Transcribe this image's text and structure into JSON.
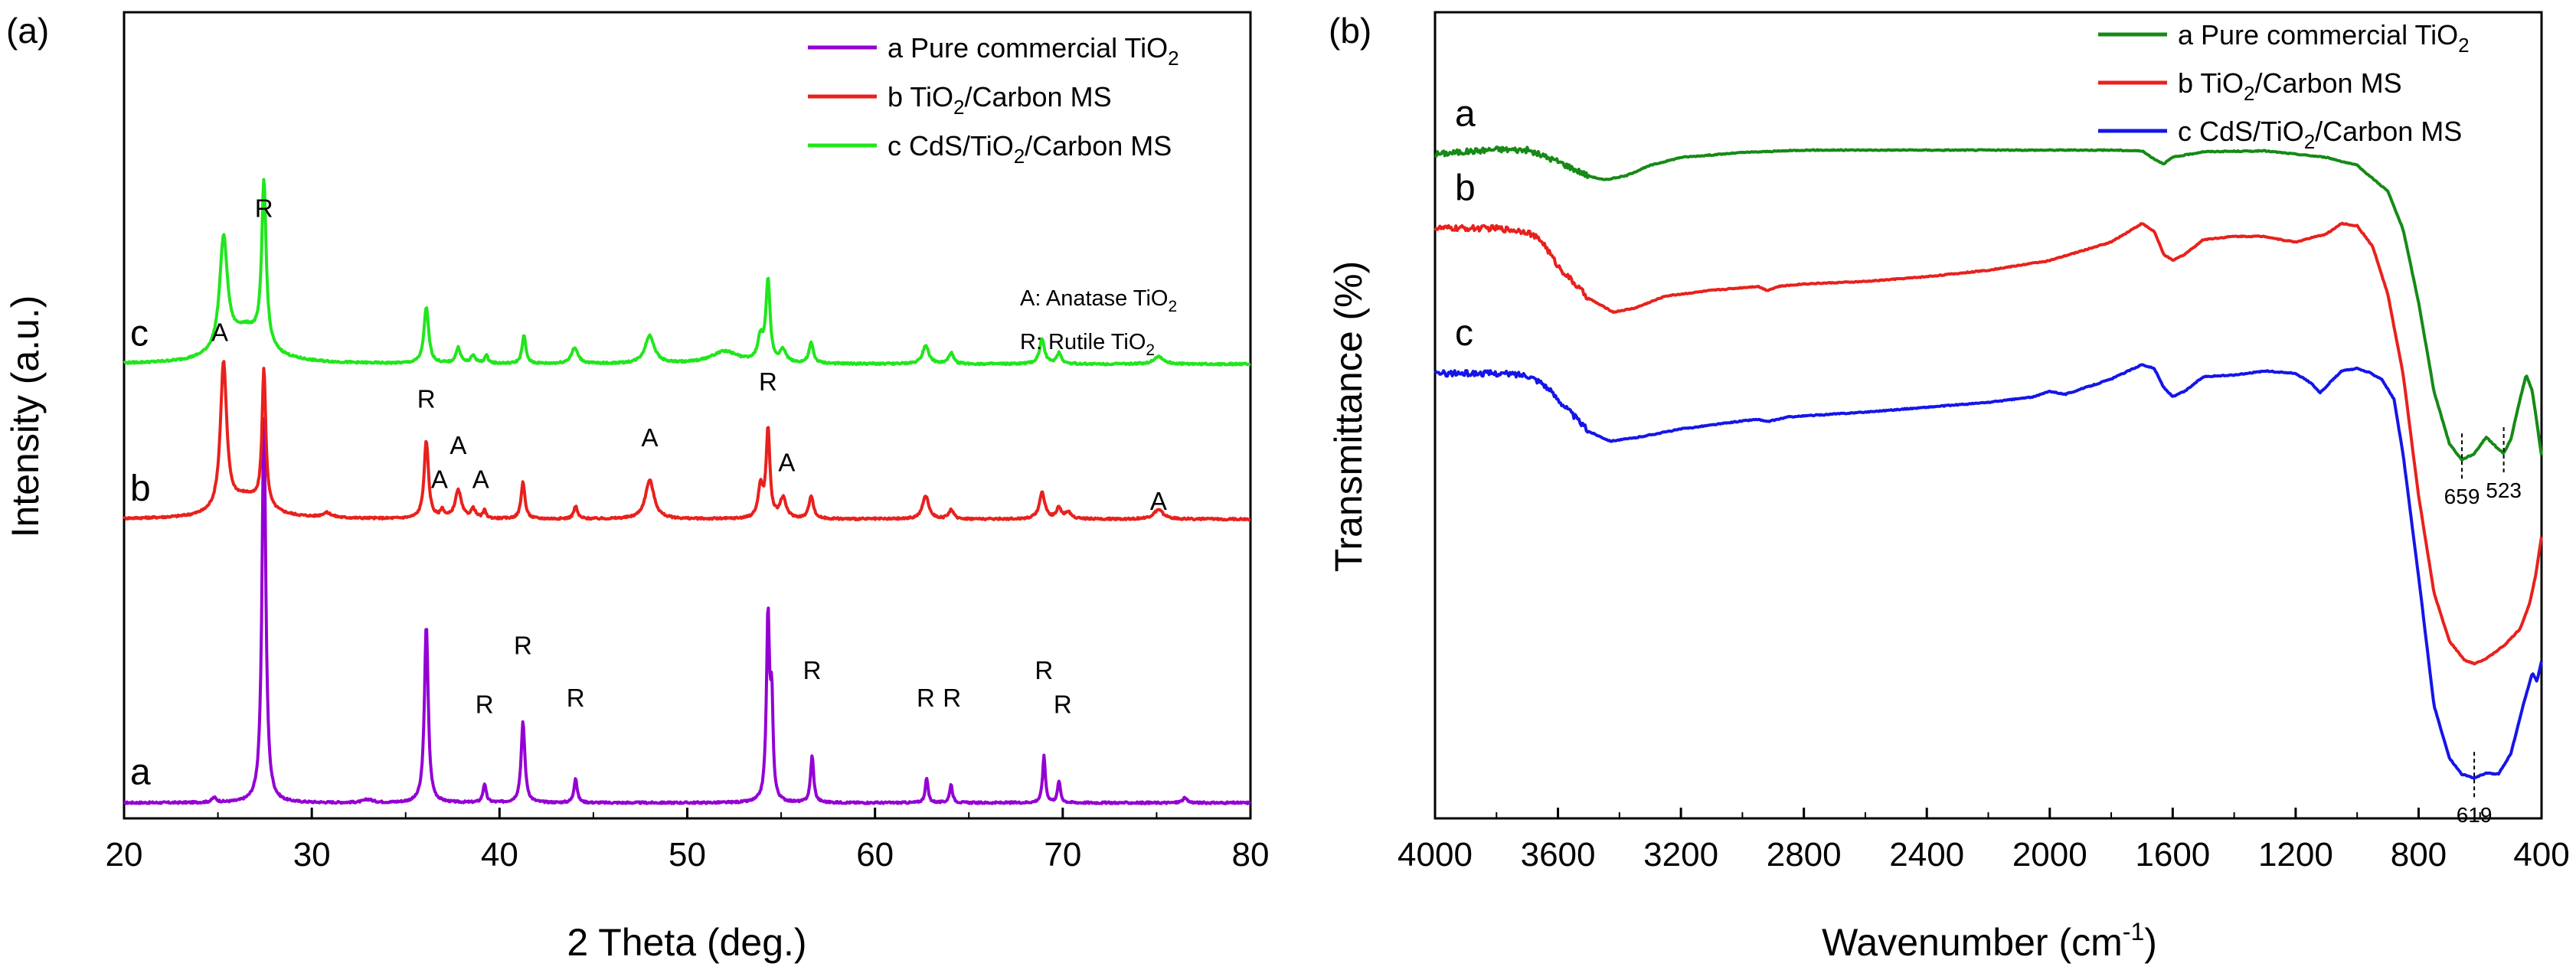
{
  "chart_data": [
    {
      "type": "line",
      "panel_label": "(a)",
      "xlabel": "2 Theta (deg.)",
      "ylabel": "Intensity (a.u.)",
      "xlim": [
        20,
        80
      ],
      "xticks": [
        20,
        30,
        40,
        50,
        60,
        70,
        80
      ],
      "ylim": [
        0,
        5.2
      ],
      "y_ticks_shown": false,
      "legend_position": "top-right",
      "series": [
        {
          "id": "a",
          "curve_label": "a",
          "legend_prefix": "a",
          "legend_main": "Pure commercial TiO",
          "legend_sub": "2",
          "legend_tail": "",
          "color": "#9400d3",
          "offset": 0.05,
          "baseline": 0.05,
          "peaks": [
            [
              27.45,
              2.5,
              0.12
            ],
            [
              36.1,
              1.15,
              0.12
            ],
            [
              39.2,
              0.12,
              0.1
            ],
            [
              41.25,
              0.52,
              0.12
            ],
            [
              44.05,
              0.16,
              0.1
            ],
            [
              54.3,
              1.2,
              0.1
            ],
            [
              54.5,
              0.6,
              0.08
            ],
            [
              56.65,
              0.3,
              0.1
            ],
            [
              62.75,
              0.16,
              0.09
            ],
            [
              64.05,
              0.12,
              0.09
            ],
            [
              69.0,
              0.3,
              0.09
            ],
            [
              69.8,
              0.14,
              0.09
            ],
            [
              24.8,
              0.03,
              0.15
            ],
            [
              33.0,
              0.02,
              0.3
            ],
            [
              76.5,
              0.03,
              0.15
            ]
          ]
        },
        {
          "id": "b",
          "curve_label": "b",
          "legend_prefix": "b",
          "legend_main": "TiO",
          "legend_sub": "2",
          "legend_tail": "/Carbon MS",
          "color": "#e8211d",
          "offset": 1.9,
          "baseline": 0.03,
          "peaks": [
            [
              25.3,
              0.95,
              0.2
            ],
            [
              27.45,
              0.88,
              0.12
            ],
            [
              36.1,
              0.5,
              0.14
            ],
            [
              36.95,
              0.05,
              0.12
            ],
            [
              37.8,
              0.18,
              0.2
            ],
            [
              38.6,
              0.06,
              0.15
            ],
            [
              39.2,
              0.05,
              0.1
            ],
            [
              41.25,
              0.24,
              0.12
            ],
            [
              44.05,
              0.08,
              0.12
            ],
            [
              48.0,
              0.25,
              0.28
            ],
            [
              53.9,
              0.2,
              0.15
            ],
            [
              54.3,
              0.57,
              0.12
            ],
            [
              55.1,
              0.13,
              0.2
            ],
            [
              56.6,
              0.15,
              0.14
            ],
            [
              62.7,
              0.15,
              0.2
            ],
            [
              64.05,
              0.06,
              0.15
            ],
            [
              68.9,
              0.17,
              0.18
            ],
            [
              69.8,
              0.07,
              0.15
            ],
            [
              70.3,
              0.04,
              0.2
            ],
            [
              75.1,
              0.06,
              0.3
            ],
            [
              30.8,
              0.03,
              0.3
            ],
            [
              26.5,
              0.14,
              1.2
            ]
          ]
        },
        {
          "id": "c",
          "curve_label": "c",
          "legend_prefix": "c",
          "legend_main": "CdS/TiO",
          "legend_sub": "2",
          "legend_tail": "/Carbon MS",
          "color": "#21e61d",
          "offset": 2.9,
          "baseline": 0.03,
          "peaks": [
            [
              25.3,
              0.72,
              0.25
            ],
            [
              27.45,
              1.05,
              0.14
            ],
            [
              26.5,
              0.22,
              1.2
            ],
            [
              36.1,
              0.36,
              0.15
            ],
            [
              37.8,
              0.1,
              0.15
            ],
            [
              38.6,
              0.05,
              0.15
            ],
            [
              39.3,
              0.05,
              0.12
            ],
            [
              41.3,
              0.18,
              0.12
            ],
            [
              44.0,
              0.1,
              0.22
            ],
            [
              48.0,
              0.18,
              0.3
            ],
            [
              52.0,
              0.08,
              0.9
            ],
            [
              54.3,
              0.52,
              0.13
            ],
            [
              53.9,
              0.15,
              0.18
            ],
            [
              55.1,
              0.08,
              0.2
            ],
            [
              56.6,
              0.13,
              0.14
            ],
            [
              62.7,
              0.12,
              0.2
            ],
            [
              64.05,
              0.07,
              0.15
            ],
            [
              68.9,
              0.16,
              0.16
            ],
            [
              69.8,
              0.07,
              0.15
            ],
            [
              75.1,
              0.05,
              0.3
            ]
          ]
        }
      ],
      "annotations": [
        {
          "text": "R",
          "x": 27.45,
          "y": 3.88
        },
        {
          "text": "R",
          "x": 36.1,
          "y": 2.65
        },
        {
          "text": "R",
          "x": 39.2,
          "y": 0.68
        },
        {
          "text": "R",
          "x": 41.25,
          "y": 1.06
        },
        {
          "text": "R",
          "x": 44.05,
          "y": 0.72
        },
        {
          "text": "R",
          "x": 54.3,
          "y": 2.76
        },
        {
          "text": "R",
          "x": 56.65,
          "y": 0.9
        },
        {
          "text": "R",
          "x": 62.7,
          "y": 0.72
        },
        {
          "text": "R",
          "x": 64.1,
          "y": 0.72
        },
        {
          "text": "R",
          "x": 69.0,
          "y": 0.9
        },
        {
          "text": "R",
          "x": 70.0,
          "y": 0.68
        },
        {
          "text": "A",
          "x": 25.1,
          "y": 3.08
        },
        {
          "text": "A",
          "x": 36.8,
          "y": 2.13
        },
        {
          "text": "A",
          "x": 37.8,
          "y": 2.35
        },
        {
          "text": "A",
          "x": 39.0,
          "y": 2.13
        },
        {
          "text": "A",
          "x": 48.0,
          "y": 2.4
        },
        {
          "text": "A",
          "x": 55.3,
          "y": 2.24
        },
        {
          "text": "A",
          "x": 75.1,
          "y": 1.99
        }
      ],
      "notes": [
        {
          "main": "A: Anatase TiO",
          "sub": "2"
        },
        {
          "main": "R: Rutile TiO",
          "sub": "2"
        }
      ]
    },
    {
      "type": "line",
      "panel_label": "(b)",
      "xlabel_main": "Wavenumber (cm",
      "xlabel_sup": "-1",
      "xlabel_tail": ")",
      "ylabel": "Transmittance (%)",
      "xlim": [
        4000,
        400
      ],
      "xticks": [
        4000,
        3600,
        3200,
        2800,
        2400,
        2000,
        1600,
        1200,
        800,
        400
      ],
      "ylim": [
        0,
        100
      ],
      "y_ticks_shown": false,
      "legend_position": "top-right",
      "series": [
        {
          "id": "a",
          "curve_label": "a",
          "legend_prefix": "a",
          "legend_main": "Pure commercial TiO",
          "legend_sub": "2",
          "legend_tail": "",
          "color": "#168a16",
          "points": [
            [
              4000,
              82.4
            ],
            [
              3800,
              83.0
            ],
            [
              3700,
              82.9
            ],
            [
              3600,
              81.5
            ],
            [
              3500,
              79.7
            ],
            [
              3450,
              79.2
            ],
            [
              3380,
              79.7
            ],
            [
              3300,
              81.0
            ],
            [
              3200,
              82.0
            ],
            [
              3000,
              82.6
            ],
            [
              2800,
              82.9
            ],
            [
              2400,
              82.9
            ],
            [
              2000,
              82.9
            ],
            [
              1800,
              82.9
            ],
            [
              1700,
              82.8
            ],
            [
              1660,
              81.8
            ],
            [
              1630,
              81.2
            ],
            [
              1600,
              82.0
            ],
            [
              1500,
              82.7
            ],
            [
              1300,
              82.8
            ],
            [
              1100,
              82.0
            ],
            [
              1000,
              81.0
            ],
            [
              950,
              79.4
            ],
            [
              900,
              77.8
            ],
            [
              850,
              73.0
            ],
            [
              800,
              64.0
            ],
            [
              750,
              53.0
            ],
            [
              700,
              46.5
            ],
            [
              660,
              44.5
            ],
            [
              620,
              45.2
            ],
            [
              580,
              47.3
            ],
            [
              540,
              45.8
            ],
            [
              523,
              45.3
            ],
            [
              500,
              47.0
            ],
            [
              470,
              52.0
            ],
            [
              450,
              55.0
            ],
            [
              430,
              53.0
            ],
            [
              400,
              45.0
            ]
          ]
        },
        {
          "id": "b",
          "curve_label": "b",
          "legend_prefix": "b",
          "legend_main": "TiO",
          "legend_sub": "2",
          "legend_tail": "/Carbon MS",
          "color": "#e8211d",
          "points": [
            [
              4000,
              73.2
            ],
            [
              3800,
              73.2
            ],
            [
              3700,
              72.8
            ],
            [
              3650,
              71.5
            ],
            [
              3600,
              68.5
            ],
            [
              3500,
              64.5
            ],
            [
              3420,
              62.8
            ],
            [
              3350,
              63.3
            ],
            [
              3250,
              64.8
            ],
            [
              3100,
              65.5
            ],
            [
              2950,
              66.0
            ],
            [
              2920,
              65.5
            ],
            [
              2880,
              66.0
            ],
            [
              2800,
              66.3
            ],
            [
              2600,
              66.6
            ],
            [
              2400,
              67.2
            ],
            [
              2200,
              68.0
            ],
            [
              2000,
              69.2
            ],
            [
              1800,
              71.5
            ],
            [
              1700,
              73.8
            ],
            [
              1660,
              72.8
            ],
            [
              1630,
              70.0
            ],
            [
              1600,
              69.2
            ],
            [
              1560,
              70.0
            ],
            [
              1500,
              71.8
            ],
            [
              1400,
              72.2
            ],
            [
              1300,
              72.2
            ],
            [
              1250,
              71.8
            ],
            [
              1200,
              71.5
            ],
            [
              1100,
              72.5
            ],
            [
              1050,
              73.8
            ],
            [
              1000,
              73.5
            ],
            [
              950,
              71.0
            ],
            [
              900,
              65.0
            ],
            [
              850,
              55.0
            ],
            [
              800,
              40.0
            ],
            [
              750,
              28.0
            ],
            [
              700,
              22.0
            ],
            [
              650,
              19.6
            ],
            [
              620,
              19.2
            ],
            [
              580,
              19.8
            ],
            [
              520,
              21.5
            ],
            [
              470,
              23.5
            ],
            [
              440,
              26.5
            ],
            [
              420,
              30.0
            ],
            [
              400,
              35.0
            ]
          ]
        },
        {
          "id": "c",
          "curve_label": "c",
          "legend_prefix": "c",
          "legend_main": "CdS/TiO",
          "legend_sub": "2",
          "legend_tail": "/Carbon MS",
          "color": "#1515e8",
          "points": [
            [
              4000,
              55.2
            ],
            [
              3800,
              55.2
            ],
            [
              3700,
              55.0
            ],
            [
              3650,
              54.0
            ],
            [
              3600,
              52.0
            ],
            [
              3500,
              48.0
            ],
            [
              3430,
              46.8
            ],
            [
              3350,
              47.2
            ],
            [
              3200,
              48.3
            ],
            [
              3000,
              49.3
            ],
            [
              2950,
              49.5
            ],
            [
              2920,
              49.2
            ],
            [
              2850,
              49.8
            ],
            [
              2600,
              50.4
            ],
            [
              2400,
              51.0
            ],
            [
              2200,
              51.6
            ],
            [
              2050,
              52.3
            ],
            [
              2000,
              53.0
            ],
            [
              1950,
              52.6
            ],
            [
              1800,
              54.5
            ],
            [
              1700,
              56.3
            ],
            [
              1660,
              55.8
            ],
            [
              1630,
              53.5
            ],
            [
              1600,
              52.3
            ],
            [
              1560,
              53.0
            ],
            [
              1500,
              54.8
            ],
            [
              1400,
              55.0
            ],
            [
              1300,
              55.5
            ],
            [
              1200,
              55.2
            ],
            [
              1150,
              54.0
            ],
            [
              1120,
              52.8
            ],
            [
              1090,
              54.0
            ],
            [
              1050,
              55.5
            ],
            [
              1000,
              55.8
            ],
            [
              960,
              55.3
            ],
            [
              920,
              54.5
            ],
            [
              880,
              52.0
            ],
            [
              850,
              45.0
            ],
            [
              800,
              30.0
            ],
            [
              750,
              14.0
            ],
            [
              700,
              7.5
            ],
            [
              660,
              5.5
            ],
            [
              620,
              5.0
            ],
            [
              580,
              5.6
            ],
            [
              540,
              5.5
            ],
            [
              500,
              8.0
            ],
            [
              460,
              14.0
            ],
            [
              430,
              18.0
            ],
            [
              415,
              17.0
            ],
            [
              400,
              19.5
            ]
          ]
        }
      ],
      "annotations": [
        {
          "text": "659",
          "x": 659,
          "at_curve": "a"
        },
        {
          "text": "523",
          "x": 523,
          "at_curve": "a"
        },
        {
          "text": "619",
          "x": 619,
          "at_curve": "c"
        }
      ]
    }
  ]
}
